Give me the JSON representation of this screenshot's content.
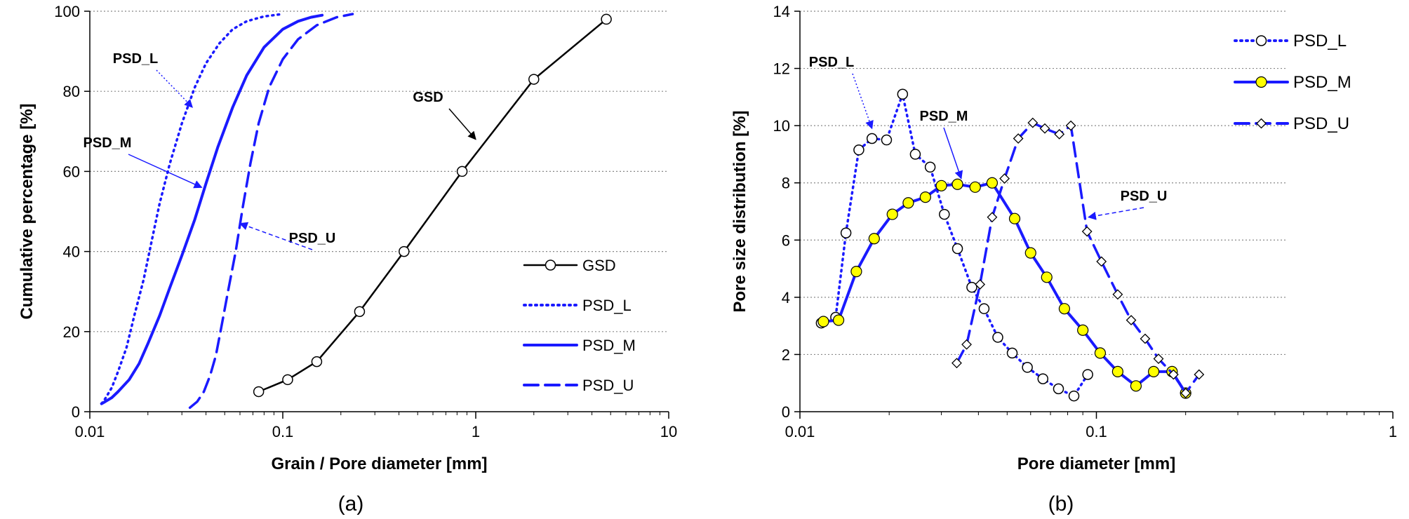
{
  "chart_data": [
    {
      "type": "line",
      "panel_label": "(a)",
      "xlabel": "Grain / Pore diameter [mm]",
      "ylabel": "Cumulative percentage [%]",
      "xscale": "log",
      "xlim": [
        0.01,
        10
      ],
      "ylim": [
        0,
        100
      ],
      "xticks": [
        0.01,
        0.1,
        1,
        10
      ],
      "xtick_labels": [
        "0.01",
        "0.1",
        "1",
        "10"
      ],
      "yticks": [
        0,
        20,
        40,
        60,
        80,
        100
      ],
      "ytick_labels": [
        "0",
        "20",
        "40",
        "60",
        "80",
        "100"
      ],
      "grid": "horizontal dotted",
      "legend_position": "bottom-right",
      "series": [
        {
          "name": "GSD",
          "color": "#000000",
          "line": "solid",
          "marker": "circle-open",
          "x": [
            0.075,
            0.106,
            0.15,
            0.25,
            0.425,
            0.85,
            2.0,
            4.75
          ],
          "y": [
            5,
            8,
            12.5,
            25,
            40,
            60,
            83,
            98
          ]
        },
        {
          "name": "PSD_L",
          "color": "#1a1aff",
          "line": "dotted",
          "marker": "none",
          "x": [
            0.0115,
            0.012,
            0.013,
            0.014,
            0.0155,
            0.017,
            0.019,
            0.021,
            0.023,
            0.026,
            0.03,
            0.035,
            0.04,
            0.047,
            0.055,
            0.065,
            0.08,
            0.1
          ],
          "y": [
            2,
            3.2,
            6,
            10,
            16,
            24,
            33,
            43,
            52,
            62,
            72,
            81,
            87,
            92,
            95.5,
            97.5,
            98.7,
            99.3
          ]
        },
        {
          "name": "PSD_M",
          "color": "#1a1aff",
          "line": "solid",
          "marker": "none",
          "x": [
            0.0115,
            0.012,
            0.013,
            0.014,
            0.016,
            0.018,
            0.02,
            0.023,
            0.026,
            0.03,
            0.035,
            0.04,
            0.046,
            0.055,
            0.065,
            0.08,
            0.1,
            0.12,
            0.14,
            0.16
          ],
          "y": [
            2,
            2.5,
            3.5,
            5,
            8,
            12,
            17,
            24,
            31,
            39,
            48,
            57,
            66,
            76,
            84,
            91,
            95.5,
            97.5,
            98.5,
            99
          ]
        },
        {
          "name": "PSD_U",
          "color": "#1a1aff",
          "line": "dashed",
          "marker": "none",
          "x": [
            0.033,
            0.036,
            0.039,
            0.042,
            0.045,
            0.048,
            0.052,
            0.057,
            0.062,
            0.068,
            0.075,
            0.085,
            0.1,
            0.12,
            0.15,
            0.19,
            0.23
          ],
          "y": [
            1,
            2.5,
            5,
            9,
            14,
            21,
            30,
            40,
            51,
            62,
            72,
            81,
            88,
            93,
            96.5,
            98.5,
            99.3
          ]
        }
      ],
      "annotations": [
        {
          "text": "PSD_L",
          "arrow_to": {
            "x": 0.034,
            "y": 76
          },
          "arrow_style": "dotted",
          "color": "#1a1aff"
        },
        {
          "text": "PSD_M",
          "arrow_to": {
            "x": 0.038,
            "y": 56
          },
          "arrow_style": "solid",
          "color": "#1a1aff"
        },
        {
          "text": "PSD_U",
          "arrow_to": {
            "x": 0.06,
            "y": 47
          },
          "arrow_style": "dashed",
          "color": "#1a1aff"
        },
        {
          "text": "GSD",
          "arrow_to": {
            "x": 1.0,
            "y": 68
          },
          "arrow_style": "solid",
          "color": "#000000"
        }
      ]
    },
    {
      "type": "line",
      "panel_label": "(b)",
      "xlabel": "Pore diameter [mm]",
      "ylabel": "Pore size distribution [%]",
      "xscale": "log",
      "xlim": [
        0.01,
        1
      ],
      "ylim": [
        0,
        14
      ],
      "xticks": [
        0.01,
        0.1,
        1
      ],
      "xtick_labels": [
        "0.01",
        "0.1",
        "1"
      ],
      "yticks": [
        0,
        2,
        4,
        6,
        8,
        10,
        12,
        14
      ],
      "ytick_labels": [
        "0",
        "2",
        "4",
        "6",
        "8",
        "10",
        "12",
        "14"
      ],
      "grid": "horizontal dotted",
      "legend_position": "top-right",
      "series": [
        {
          "name": "PSD_L",
          "color": "#1a1aff",
          "line": "dotted",
          "marker": "circle-open",
          "x": [
            0.0118,
            0.0132,
            0.0143,
            0.0158,
            0.0175,
            0.0196,
            0.0222,
            0.0245,
            0.0275,
            0.0307,
            0.034,
            0.038,
            0.0418,
            0.0465,
            0.052,
            0.0585,
            0.066,
            0.0745,
            0.084,
            0.0935
          ],
          "y": [
            3.1,
            3.3,
            6.25,
            9.15,
            9.55,
            9.5,
            11.1,
            9.0,
            8.55,
            6.9,
            5.7,
            4.35,
            3.6,
            2.6,
            2.05,
            1.55,
            1.15,
            0.8,
            0.55,
            1.3
          ]
        },
        {
          "name": "PSD_M",
          "color": "#1a1aff",
          "line": "solid",
          "marker": "circle-yellow",
          "x": [
            0.012,
            0.0135,
            0.0155,
            0.0178,
            0.0205,
            0.0232,
            0.0265,
            0.03,
            0.034,
            0.039,
            0.0445,
            0.053,
            0.06,
            0.068,
            0.078,
            0.09,
            0.103,
            0.118,
            0.136,
            0.156,
            0.18,
            0.2
          ],
          "y": [
            3.15,
            3.2,
            4.9,
            6.05,
            6.9,
            7.3,
            7.5,
            7.9,
            7.95,
            7.85,
            8.0,
            6.75,
            5.55,
            4.7,
            3.6,
            2.85,
            2.05,
            1.4,
            0.9,
            1.4,
            1.4,
            0.65
          ]
        },
        {
          "name": "PSD_U",
          "color": "#1a1aff",
          "line": "dashed",
          "marker": "diamond-open",
          "x": [
            0.0338,
            0.0365,
            0.0405,
            0.0445,
            0.049,
            0.0545,
            0.061,
            0.067,
            0.075,
            0.082,
            0.093,
            0.104,
            0.118,
            0.131,
            0.146,
            0.162,
            0.182,
            0.2,
            0.222
          ],
          "y": [
            1.7,
            2.35,
            4.45,
            6.8,
            8.15,
            9.55,
            10.1,
            9.9,
            9.7,
            10.0,
            6.3,
            5.25,
            4.1,
            3.2,
            2.55,
            1.85,
            1.3,
            0.65,
            1.3
          ]
        }
      ],
      "annotations": [
        {
          "text": "PSD_L",
          "arrow_to": {
            "x": 0.0175,
            "y": 9.9
          },
          "arrow_style": "dotted",
          "color": "#1a1aff"
        },
        {
          "text": "PSD_M",
          "arrow_to": {
            "x": 0.035,
            "y": 8.15
          },
          "arrow_style": "solid",
          "color": "#1a1aff"
        },
        {
          "text": "PSD_U",
          "arrow_to": {
            "x": 0.094,
            "y": 6.8
          },
          "arrow_style": "dashed",
          "color": "#1a1aff"
        }
      ]
    }
  ]
}
